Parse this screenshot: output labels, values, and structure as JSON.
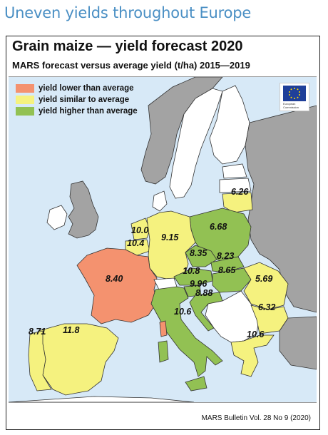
{
  "headline": "Uneven yields throughout Europe",
  "map": {
    "title": "Grain maize — yield forecast 2020",
    "subtitle": "MARS forecast versus average yield (t/ha) 2015—2019",
    "legend": [
      {
        "label": "yield lower than average",
        "color": "#f4926f"
      },
      {
        "label": "yield similar to average",
        "color": "#f5f27f"
      },
      {
        "label": "yield higher than average",
        "color": "#92c153"
      }
    ],
    "colors": {
      "sea": "#d7e9f7",
      "non_eu": "#a3a3a3",
      "land_other": "#ffffff",
      "borders": "#333333"
    },
    "values": [
      {
        "country": "Lithuania",
        "value": "6.26"
      },
      {
        "country": "Poland",
        "value": "6.68"
      },
      {
        "country": "Netherlands",
        "value": "10.0"
      },
      {
        "country": "Belgium",
        "value": "10.4"
      },
      {
        "country": "Germany",
        "value": "9.15"
      },
      {
        "country": "Czechia",
        "value": "8.35"
      },
      {
        "country": "Slovakia",
        "value": "8.23"
      },
      {
        "country": "Hungary",
        "value": "8.65"
      },
      {
        "country": "Austria",
        "value": "10.8"
      },
      {
        "country": "Slovenia",
        "value": "9.96"
      },
      {
        "country": "Croatia",
        "value": "8.88"
      },
      {
        "country": "France",
        "value": "8.40"
      },
      {
        "country": "Romania",
        "value": "5.69"
      },
      {
        "country": "Bulgaria",
        "value": "6.32"
      },
      {
        "country": "Italy",
        "value": "10.6"
      },
      {
        "country": "Greece",
        "value": "10.6"
      },
      {
        "country": "Portugal",
        "value": "8.71"
      },
      {
        "country": "Spain",
        "value": "11.8"
      }
    ],
    "logo": {
      "icon": "eu-flag-icon",
      "text": "European Commission"
    },
    "source": "MARS Bulletin Vol. 28 No 9 (2020)"
  }
}
